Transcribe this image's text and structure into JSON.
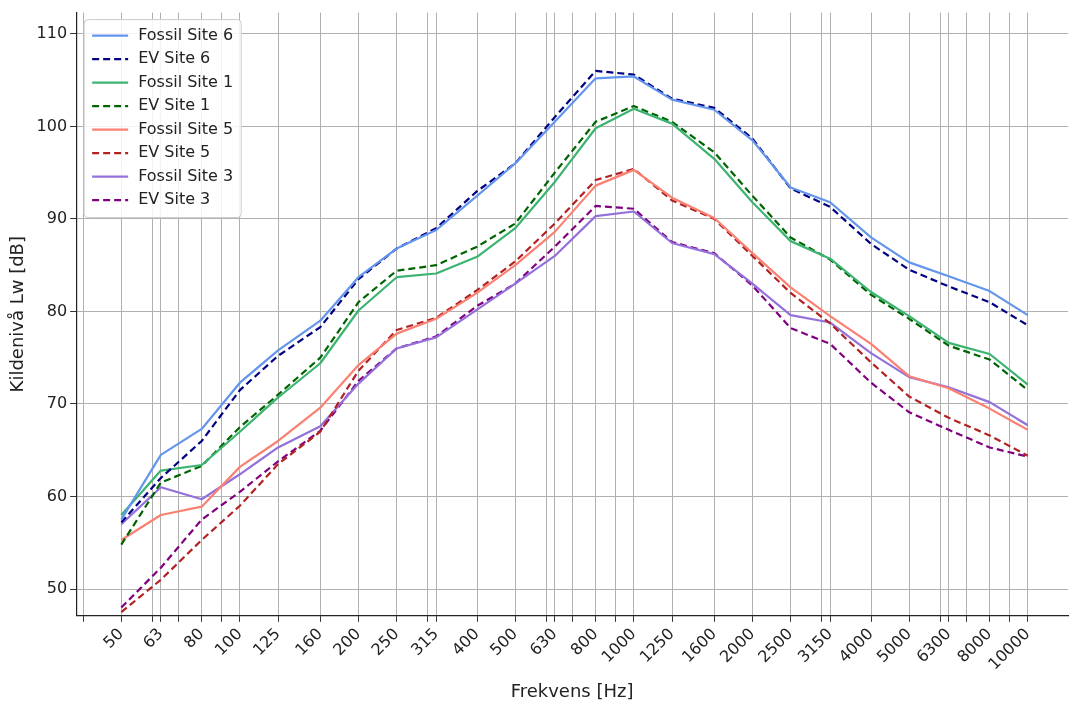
{
  "chart_data": {
    "type": "line",
    "xlabel": "Frekvens [Hz]",
    "ylabel": "Kildenivå Lw [dB]",
    "x": [
      50,
      63,
      80,
      100,
      125,
      160,
      200,
      250,
      315,
      400,
      500,
      630,
      800,
      1000,
      1250,
      1600,
      2000,
      2500,
      3150,
      4000,
      5000,
      6300,
      8000,
      10000
    ],
    "log": "x",
    "xlim": [
      38.4,
      12650
    ],
    "xticks": [
      {
        "value": 40,
        "label": null
      },
      50,
      {
        "value": 60,
        "label": null
      },
      63,
      {
        "value": 70,
        "label": null
      },
      80,
      {
        "value": 90,
        "label": null
      },
      100,
      125,
      160,
      200,
      250,
      {
        "value": 300,
        "label": null
      },
      315,
      400,
      500,
      {
        "value": 600,
        "label": null
      },
      630,
      {
        "value": 700,
        "label": null
      },
      800,
      {
        "value": 900,
        "label": null
      },
      1000,
      1250,
      1600,
      2000,
      2500,
      {
        "value": 3000,
        "label": null
      },
      3150,
      4000,
      5000,
      {
        "value": 6000,
        "label": null
      },
      6300,
      {
        "value": 7000,
        "label": null
      },
      8000,
      {
        "value": 9000,
        "label": null
      },
      10000
    ],
    "ylim": [
      47.1,
      112.3
    ],
    "yticks": [
      50,
      60,
      70,
      80,
      90,
      100,
      110
    ],
    "grid": true,
    "legend": "top left",
    "marker": "none",
    "series": [
      {
        "name": "Fossil Site 6",
        "color": "#6495ed",
        "line_style": "solid",
        "values": [
          57.5,
          64.5,
          67.3,
          72.3,
          75.8,
          79,
          83.7,
          86.8,
          88.8,
          92.5,
          96,
          100.5,
          105.2,
          105.4,
          102.9,
          101.8,
          98.5,
          93.4,
          91.8,
          88,
          85.3,
          83.8,
          82.2,
          79.6
        ]
      },
      {
        "name": "EV Site 6",
        "color": "#000080",
        "line_style": "dashed",
        "values": [
          57.2,
          62,
          66,
          71.5,
          75.2,
          78.3,
          83.5,
          86.8,
          89,
          93,
          96,
          101,
          106,
          105.6,
          103,
          102,
          98.7,
          93.3,
          91.3,
          87.3,
          84.5,
          82.7,
          81,
          78.5
        ]
      },
      {
        "name": "Fossil Site 1",
        "color": "#3cb371",
        "line_style": "solid",
        "values": [
          58,
          62.8,
          63.4,
          67,
          70.7,
          74.4,
          80.1,
          83.7,
          84.1,
          85.9,
          89,
          94,
          99.8,
          101.9,
          100.3,
          96.5,
          91.8,
          87.6,
          85.7,
          82.1,
          79.5,
          76.6,
          75.4,
          72.1
        ]
      },
      {
        "name": "EV Site 1",
        "color": "#006400",
        "line_style": "dashed",
        "values": [
          54.8,
          61.5,
          63.3,
          67.5,
          71,
          75,
          81,
          84.4,
          85,
          87,
          89.5,
          95,
          100.5,
          102.2,
          100.5,
          97.2,
          92.5,
          88,
          85.6,
          81.8,
          79.2,
          76.3,
          74.8,
          71.5
        ]
      },
      {
        "name": "Fossil Site 5",
        "color": "#fa8072",
        "line_style": "solid",
        "values": [
          55.3,
          58,
          58.9,
          63.2,
          66,
          69.6,
          74.2,
          77.6,
          79.2,
          82,
          85,
          88.6,
          93.6,
          95.3,
          92.3,
          90.1,
          86.3,
          82.6,
          79.5,
          76.5,
          73,
          71.7,
          69.5,
          67.2
        ]
      },
      {
        "name": "EV Site 5",
        "color": "#b22222",
        "line_style": "dashed",
        "values": [
          47.5,
          51,
          55.3,
          59,
          63.5,
          67,
          73.6,
          78,
          79.3,
          82.3,
          85.4,
          89.5,
          94.2,
          95.4,
          92,
          90,
          86,
          82,
          78.7,
          74.5,
          70.8,
          68.5,
          66.6,
          64.4
        ]
      },
      {
        "name": "Fossil Site 3",
        "color": "#9370db",
        "line_style": "solid",
        "values": [
          57,
          61,
          59.7,
          62.4,
          65.3,
          67.6,
          72.2,
          76,
          77.2,
          80.2,
          83,
          86,
          90.3,
          90.8,
          87.4,
          86.2,
          83,
          79.6,
          78.8,
          75.5,
          72.9,
          71.8,
          70.2,
          67.7
        ]
      },
      {
        "name": "EV Site 3",
        "color": "#800080",
        "line_style": "dashed",
        "values": [
          48,
          52.3,
          57.5,
          60.5,
          63.8,
          67.1,
          72.5,
          76,
          77.3,
          80.6,
          83,
          87,
          91.4,
          91.1,
          87.5,
          86.3,
          82.8,
          78.2,
          76.5,
          72.3,
          69.1,
          67.2,
          65.3,
          64.3
        ]
      }
    ]
  }
}
